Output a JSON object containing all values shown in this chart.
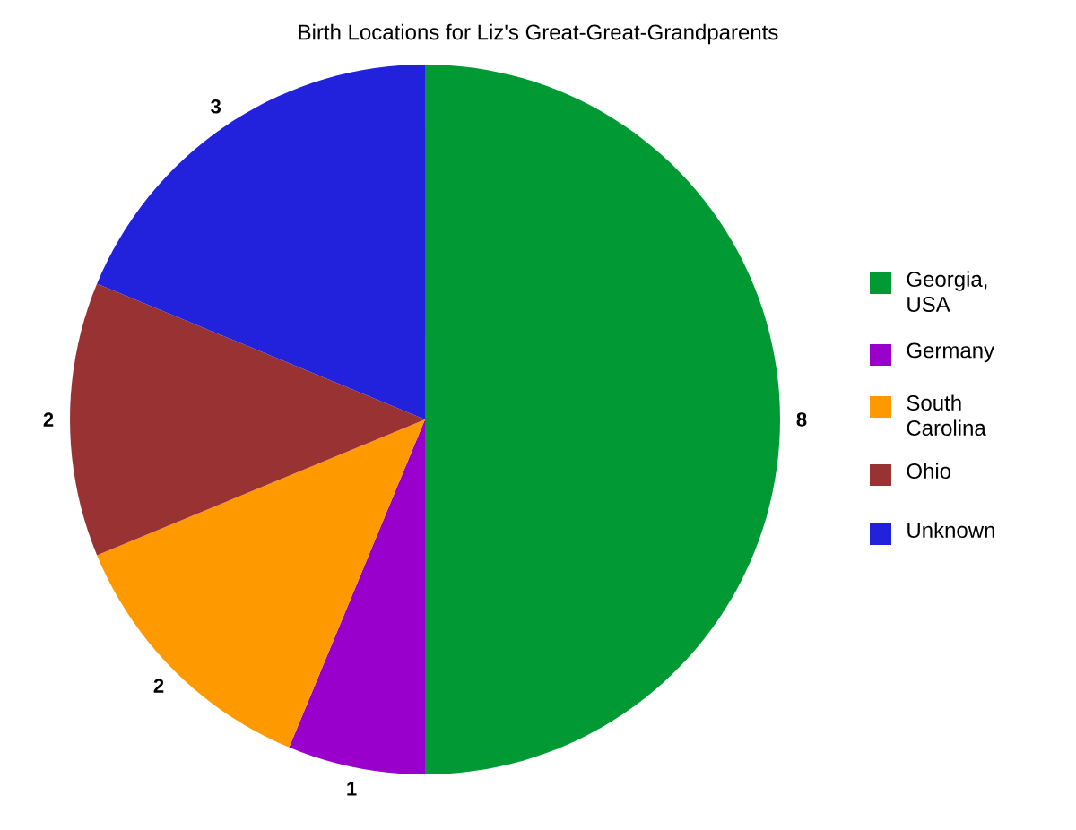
{
  "chart_data": {
    "type": "pie",
    "title": "Birth Locations for Liz's Great-Great-Grandparents",
    "categories": [
      "Georgia, USA",
      "Germany",
      "South Carolina",
      "Ohio",
      "Unknown"
    ],
    "values": [
      8,
      1,
      2,
      2,
      3
    ],
    "colors": [
      "#009933",
      "#9900cc",
      "#ff9900",
      "#993333",
      "#2222dd"
    ],
    "data_labels": true,
    "legend": "right"
  }
}
